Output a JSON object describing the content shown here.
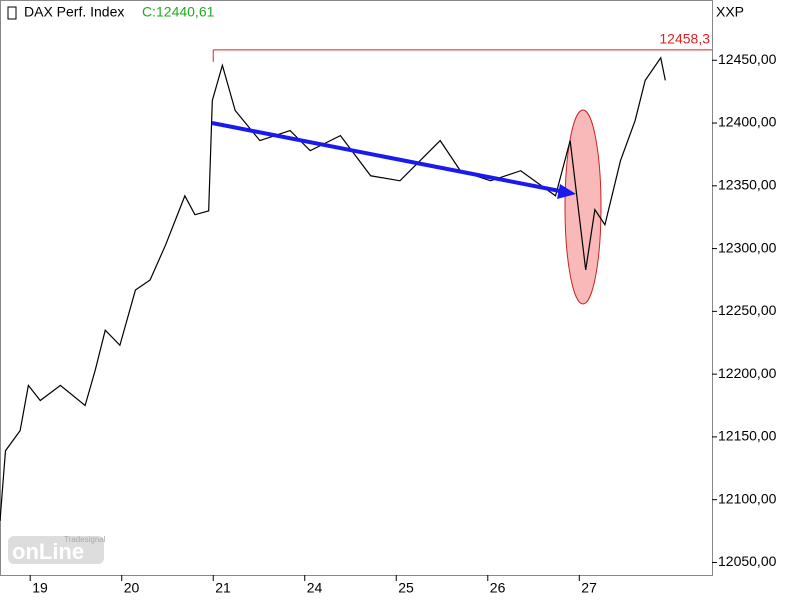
{
  "chart_data": {
    "type": "line",
    "title": "DAX Perf. Index",
    "close_label": "C:12440,61",
    "symbol": "XXP",
    "watermark": {
      "brand": "Tradesignal",
      "name": "onLine"
    },
    "high": {
      "value": 12458.3,
      "label": "12458,3"
    },
    "xlim": [
      -0.33,
      7.45
    ],
    "ylim": [
      12040,
      12498
    ],
    "xticks": [
      {
        "value": 0,
        "label": "19"
      },
      {
        "value": 1,
        "label": "20"
      },
      {
        "value": 2,
        "label": "21"
      },
      {
        "value": 3,
        "label": "24"
      },
      {
        "value": 4,
        "label": "25"
      },
      {
        "value": 5,
        "label": "26"
      },
      {
        "value": 6,
        "label": "27"
      }
    ],
    "yticks": [
      {
        "value": 12050,
        "label": "12050,00"
      },
      {
        "value": 12100,
        "label": "12100,00"
      },
      {
        "value": 12150,
        "label": "12150,00"
      },
      {
        "value": 12200,
        "label": "12200,00"
      },
      {
        "value": 12250,
        "label": "12250,00"
      },
      {
        "value": 12300,
        "label": "12300,00"
      },
      {
        "value": 12350,
        "label": "12350,00"
      },
      {
        "value": 12400,
        "label": "12400,00"
      },
      {
        "value": 12450,
        "label": "12450,00"
      }
    ],
    "series": [
      {
        "color": "#000000",
        "x": [
          -0.33,
          -0.27,
          -0.11,
          -0.02,
          0.11,
          0.33,
          0.6,
          0.71,
          0.82,
          0.98,
          1.15,
          1.31,
          1.48,
          1.69,
          1.8,
          1.95,
          1.99,
          2.1,
          2.24,
          2.51,
          2.84,
          3.06,
          3.39,
          3.72,
          4.04,
          4.26,
          4.48,
          4.7,
          5.03,
          5.36,
          5.74,
          5.9,
          6.07,
          6.17,
          6.28,
          6.45,
          6.61,
          6.72,
          6.89,
          6.94
        ],
        "values": [
          12083,
          12139,
          12155,
          12191,
          12179,
          12191,
          12175,
          12203,
          12235,
          12223,
          12267,
          12275,
          12303,
          12342,
          12327,
          12330,
          12418,
          12446,
          12410,
          12386,
          12394,
          12378,
          12390,
          12358,
          12354,
          12370,
          12386,
          12362,
          12354,
          12362,
          12342,
          12386,
          12283,
          12331,
          12319,
          12370,
          12402,
          12434,
          12452,
          12434
        ]
      }
    ]
  }
}
